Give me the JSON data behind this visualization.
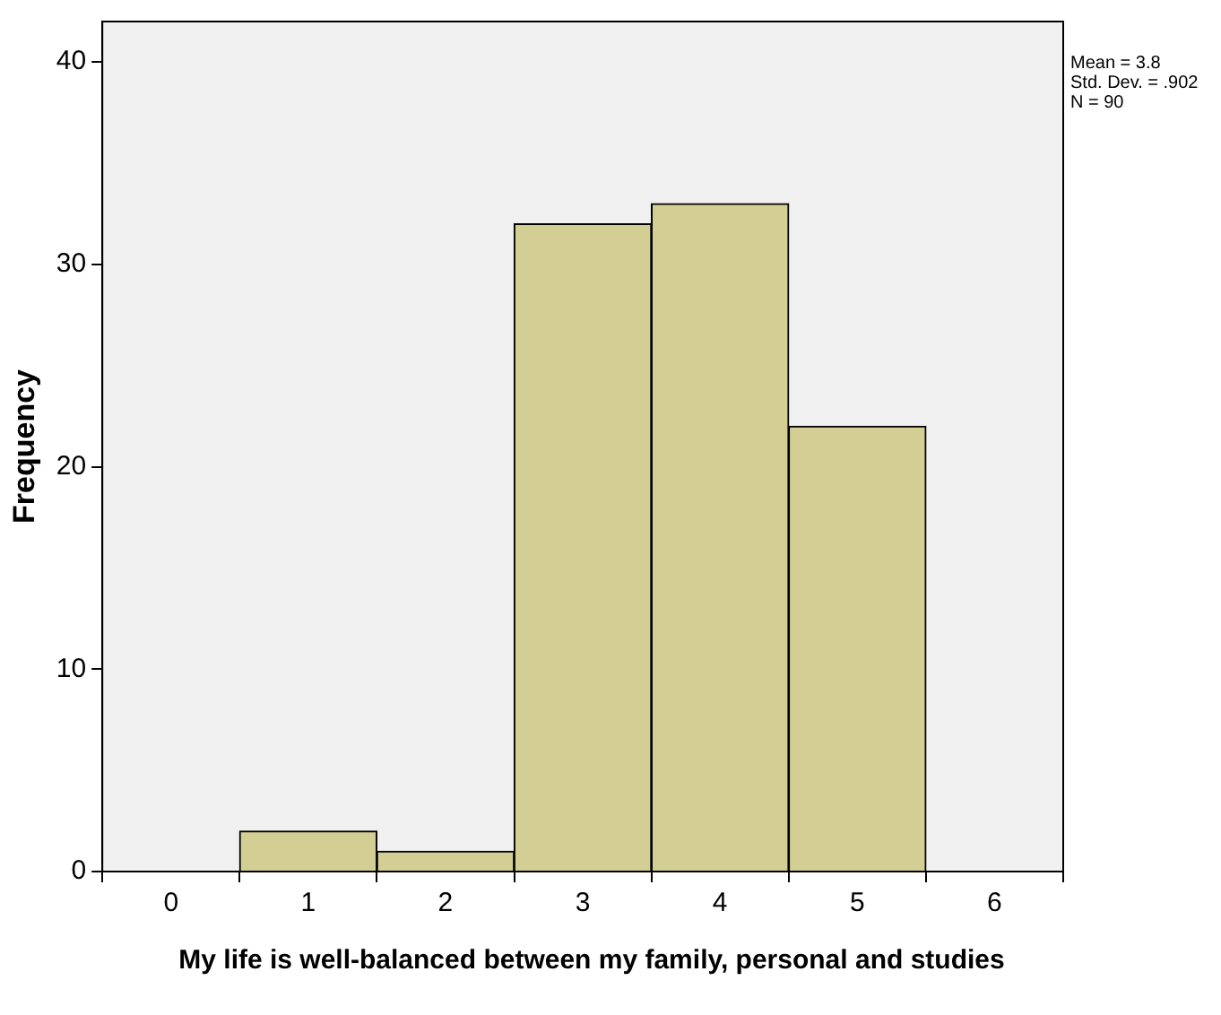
{
  "chart_data": {
    "type": "histogram",
    "xlabel": "My life is well-balanced between my family, personal and studies",
    "ylabel": "Frequency",
    "bins": [
      0.5,
      1.5,
      2.5,
      3.5,
      4.5,
      5.5
    ],
    "values": [
      2,
      1,
      32,
      33,
      22
    ],
    "color": "#d3cf94",
    "xlim": [
      -0.5,
      6.5
    ],
    "xticks": [
      0,
      1,
      2,
      3,
      4,
      5,
      6
    ],
    "ylim": [
      0,
      42
    ],
    "yticks": [
      0,
      10,
      20,
      30,
      40
    ],
    "grid": false,
    "legend": false,
    "annotations": [
      "Mean = 3.8",
      "Std. Dev. = .902",
      "N = 90"
    ]
  }
}
